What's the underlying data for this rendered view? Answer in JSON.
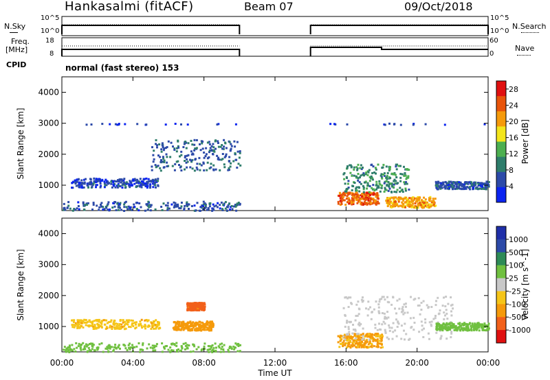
{
  "header": {
    "station": "Hankasalmi (fitACF)",
    "beam": "Beam 07",
    "date": "09/Oct/2018"
  },
  "noise_panel": {
    "left_label": "N.Sky",
    "right_label": "N.Search",
    "left_ticks": [
      "10^5",
      "10^0"
    ],
    "right_ticks": [
      "10^5",
      "10^0"
    ]
  },
  "freq_panel": {
    "left_label_1": "Freq.",
    "left_label_2": "[MHz]",
    "right_label": "Nave",
    "left_ticks": [
      "18",
      "8"
    ],
    "right_ticks": [
      "60",
      "0"
    ]
  },
  "cpid": {
    "label": "CPID",
    "mode": "normal (fast stereo) 153"
  },
  "colors": {
    "power_scale": [
      "#0b24f0",
      "#2c4aa8",
      "#2e7d6b",
      "#4caf50",
      "#f3e51c",
      "#f59a0b",
      "#e8540a",
      "#e01010"
    ],
    "velocity_scale": [
      "#e01010",
      "#f2601a",
      "#f59a0b",
      "#f5c518",
      "#c8c8c8",
      "#70c040",
      "#2e8b57",
      "#2c4aa8",
      "#1f2fa8"
    ]
  },
  "chart_data": [
    {
      "type": "heatmap",
      "title": "",
      "xlabel": "Time UT",
      "ylabel": "Slant Range [km]",
      "x_ticks": [
        "00:00",
        "04:00",
        "08:00",
        "12:00",
        "16:00",
        "20:00",
        "00:00"
      ],
      "xlim": [
        0,
        24
      ],
      "ylim": [
        180,
        4500
      ],
      "y_ticks": [
        1000,
        2000,
        3000,
        4000
      ],
      "colorbar_label": "Power [dB]",
      "colorbar_ticks": [
        4,
        8,
        12,
        16,
        20,
        24,
        28
      ],
      "colorbar_range": [
        0,
        30
      ],
      "data_gap_hours": [
        10,
        14
      ],
      "features": [
        {
          "name": "near-range scatter",
          "t_start": 0.0,
          "t_end": 10.0,
          "range": [
            200,
            500
          ],
          "power": 6
        },
        {
          "name": "mid-range band",
          "t_start": 0.5,
          "t_end": 5.5,
          "range": [
            950,
            1250
          ],
          "power": 5
        },
        {
          "name": "sparse far scatter",
          "t_start": 5.0,
          "t_end": 10.0,
          "range": [
            1500,
            2500
          ],
          "power": 7
        },
        {
          "name": "3000 km dots",
          "t_start": 0.5,
          "t_end": 23.8,
          "range": [
            2980,
            3020
          ],
          "power": 4
        },
        {
          "name": "evening enhancement",
          "t_start": 15.5,
          "t_end": 17.8,
          "range": [
            400,
            800
          ],
          "power": 24
        },
        {
          "name": "secondary enhancement",
          "t_start": 18.2,
          "t_end": 21.0,
          "range": [
            300,
            650
          ],
          "power": 20
        },
        {
          "name": "upper band",
          "t_start": 15.8,
          "t_end": 19.5,
          "range": [
            800,
            1700
          ],
          "power": 10
        },
        {
          "name": "late band",
          "t_start": 21.0,
          "t_end": 24.0,
          "range": [
            900,
            1150
          ],
          "power": 6
        }
      ]
    },
    {
      "type": "heatmap",
      "title": "",
      "xlabel": "Time UT",
      "ylabel": "Slant Range [km]",
      "x_ticks": [
        "00:00",
        "04:00",
        "08:00",
        "12:00",
        "16:00",
        "20:00",
        "00:00"
      ],
      "xlim": [
        0,
        24
      ],
      "ylim": [
        180,
        4500
      ],
      "y_ticks": [
        1000,
        2000,
        3000,
        4000
      ],
      "colorbar_label": "Velocity [m s^-1]",
      "colorbar_ticks": [
        1000,
        500,
        100,
        25,
        -25,
        -100,
        -500,
        -1000
      ],
      "data_gap_hours": [
        10,
        14
      ],
      "features": [
        {
          "name": "near-range ground scatter",
          "t_start": 0.0,
          "t_end": 10.0,
          "range": [
            200,
            500
          ],
          "velocity": 60
        },
        {
          "name": "mid-range band",
          "t_start": 0.5,
          "t_end": 5.5,
          "range": [
            950,
            1250
          ],
          "velocity": -80
        },
        {
          "name": "pre-noon patch",
          "t_start": 6.2,
          "t_end": 8.5,
          "range": [
            900,
            1200
          ],
          "velocity": -150
        },
        {
          "name": "strong negative patch",
          "t_start": 7.0,
          "t_end": 8.0,
          "range": [
            1550,
            1800
          ],
          "velocity": -700
        },
        {
          "name": "evening flow",
          "t_start": 15.5,
          "t_end": 18.0,
          "range": [
            350,
            800
          ],
          "velocity": -120
        },
        {
          "name": "ground scatter",
          "t_start": 15.8,
          "t_end": 22.0,
          "range": [
            600,
            2000
          ],
          "velocity": 0
        },
        {
          "name": "late band",
          "t_start": 21.0,
          "t_end": 24.0,
          "range": [
            900,
            1150
          ],
          "velocity": 40
        }
      ]
    }
  ]
}
